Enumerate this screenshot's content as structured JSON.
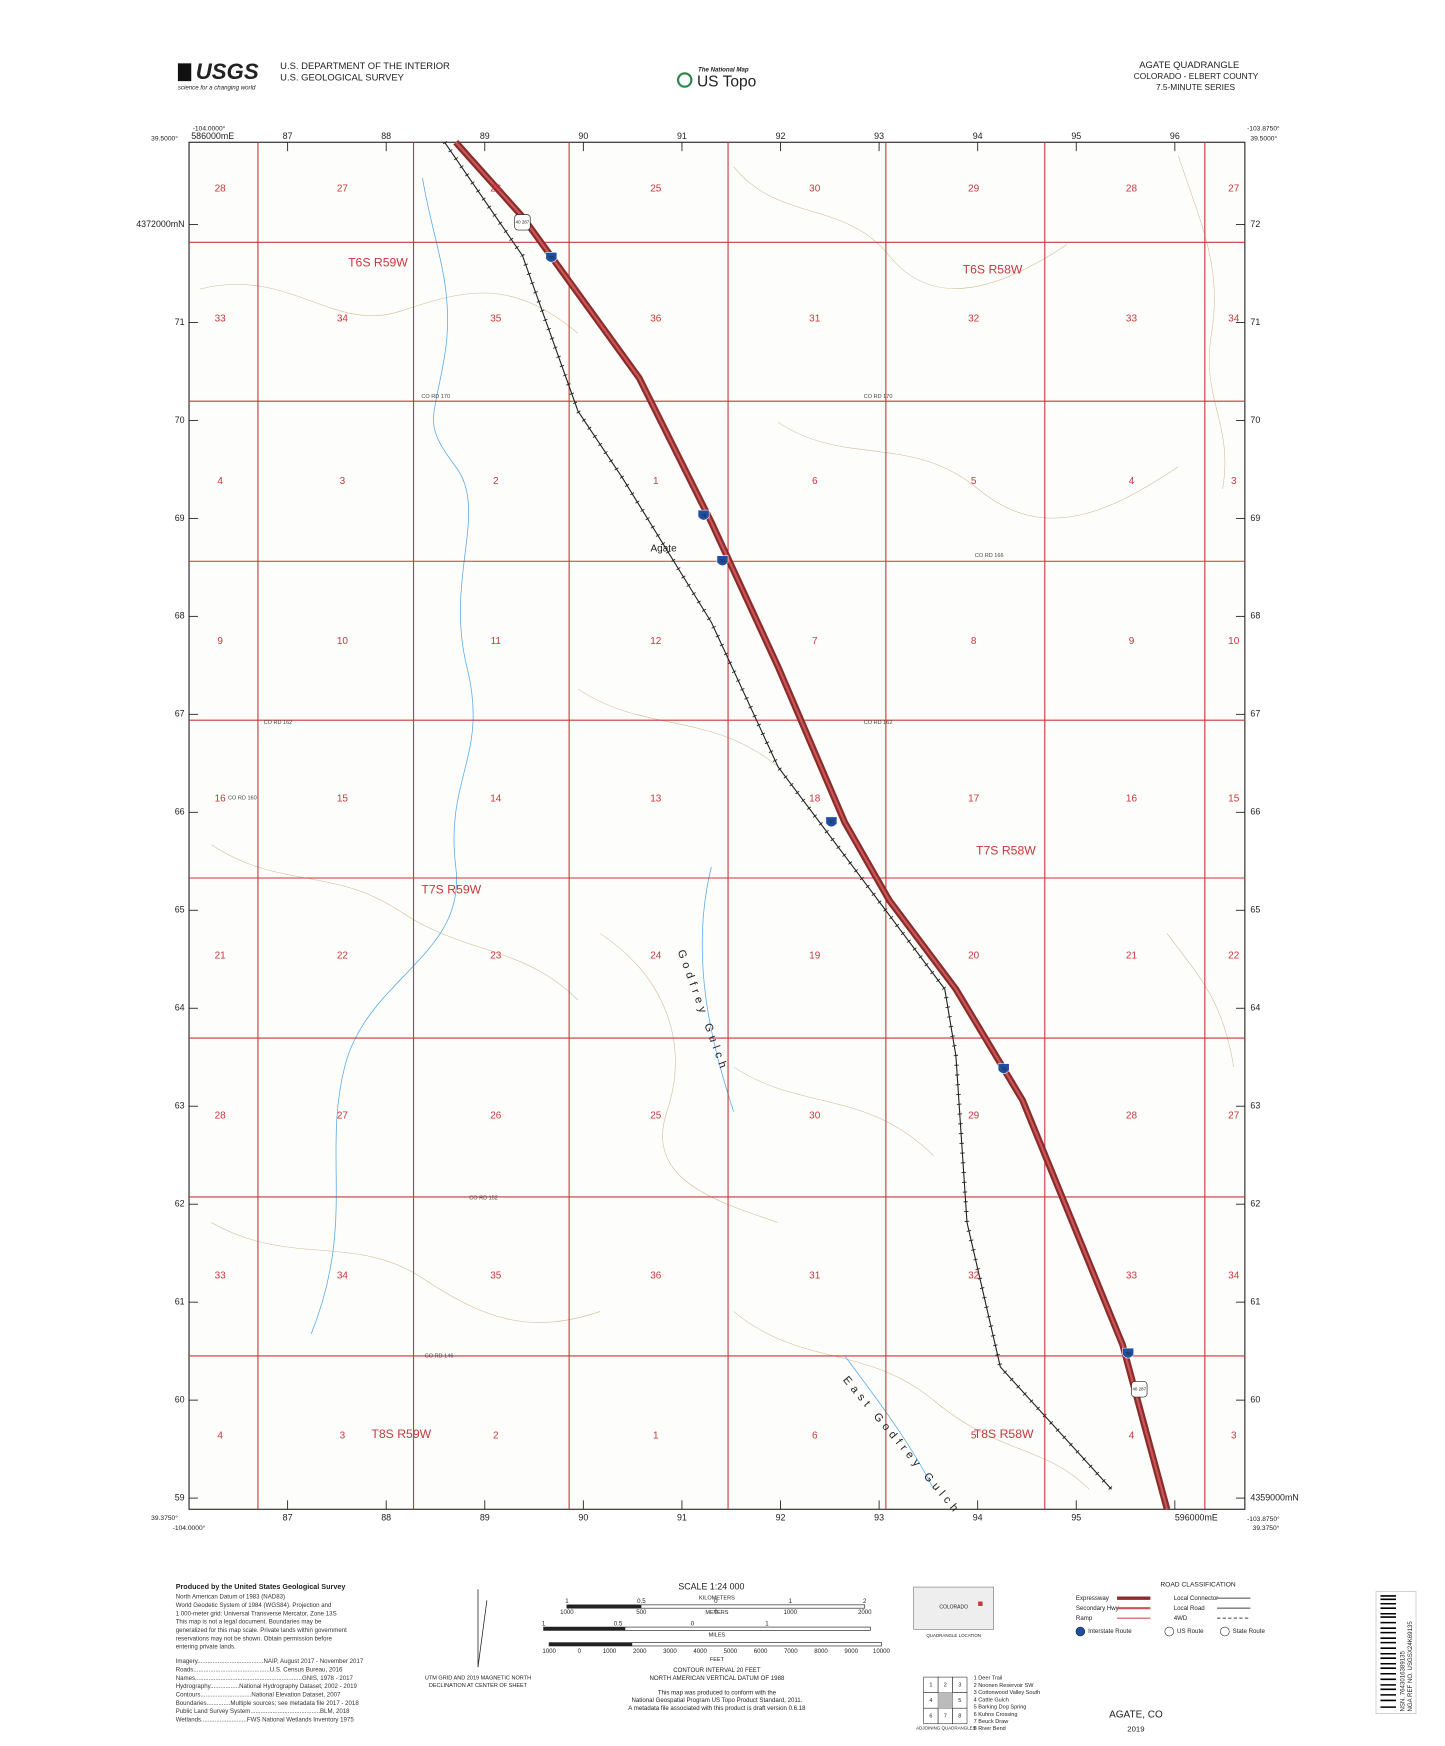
{
  "header": {
    "logo": "USGS",
    "tagline": "science for a changing world",
    "agency_line1": "U.S. DEPARTMENT OF THE INTERIOR",
    "agency_line2": "U.S. GEOLOGICAL SURVEY",
    "national_map": "The National Map",
    "us_topo": "US Topo",
    "quad_title": "AGATE QUADRANGLE",
    "state_county": "COLORADO - ELBERT COUNTY",
    "series": "7.5-MINUTE SERIES"
  },
  "map": {
    "corners": {
      "nw_lon": "-104.0000°",
      "nw_lat": "39.5000°",
      "ne_lon": "-103.8750°",
      "ne_lat": "39.5000°",
      "sw_lat": "39.3750°",
      "sw_lon": "-104.0000°",
      "se_lat": "39.3750°",
      "se_lon": "-103.8750°"
    },
    "eastings_top": [
      "586000mE",
      "87",
      "88",
      "89",
      "90",
      "91",
      "92",
      "93",
      "94",
      "95",
      "96"
    ],
    "eastings_bottom": [
      "87",
      "88",
      "89",
      "90",
      "91",
      "92",
      "93",
      "94",
      "95",
      "596000mE"
    ],
    "northings_left": [
      "4372000mN",
      "71",
      "70",
      "69",
      "68",
      "67",
      "66",
      "65",
      "64",
      "63",
      "62",
      "61",
      "60",
      "59"
    ],
    "northings_right": [
      "72",
      "71",
      "70",
      "69",
      "68",
      "67",
      "66",
      "65",
      "64",
      "63",
      "62",
      "61",
      "60",
      "4359000mN"
    ],
    "sections": [
      [
        "28",
        "27",
        "26",
        "25",
        "30",
        "29",
        "28",
        "27"
      ],
      [
        "33",
        "34",
        "35",
        "36",
        "31",
        "32",
        "33",
        "34"
      ],
      [
        "4",
        "3",
        "2",
        "1",
        "6",
        "5",
        "4",
        "3"
      ],
      [
        "9",
        "10",
        "11",
        "12",
        "7",
        "8",
        "9",
        "10"
      ],
      [
        "16",
        "15",
        "14",
        "13",
        "18",
        "17",
        "16",
        "15"
      ],
      [
        "21",
        "22",
        "23",
        "24",
        "19",
        "20",
        "21",
        "22"
      ],
      [
        "28",
        "27",
        "26",
        "25",
        "30",
        "29",
        "28",
        "27"
      ],
      [
        "33",
        "34",
        "35",
        "36",
        "31",
        "32",
        "33",
        "34"
      ],
      [
        "4",
        "3",
        "2",
        "1",
        "6",
        "5",
        "4",
        "3"
      ]
    ],
    "townships": [
      "T6S R59W",
      "T6S R58W",
      "T7S R58W",
      "T7S R59W",
      "T8S R59W",
      "T8S R58W"
    ],
    "places": [
      "Agate",
      "Godfrey Gulch",
      "East Godfrey Gulch"
    ],
    "roads": [
      "CO RD 170",
      "CO RD 170",
      "CO RD 166",
      "CO RD 162",
      "CO RD 162",
      "CO RD 160",
      "CO RD 152",
      "CO RD 146"
    ],
    "shields": [
      "70",
      "70",
      "70",
      "70",
      "70",
      "70"
    ],
    "us_shields": [
      "40 287",
      "40 287"
    ]
  },
  "footer": {
    "produced_by": "Produced by the United States Geological Survey",
    "notes": [
      "North American Datum of 1983 (NAD83)",
      "World Geodetic System of 1984 (WGS84). Projection and",
      "1 000-meter grid: Universal Transverse Mercator, Zone 13S",
      "This map is not a legal document. Boundaries may be",
      "generalized for this map scale. Private lands within government",
      "reservations may not be shown. Obtain permission before",
      "entering private lands."
    ],
    "sources": [
      "Imagery.......................................NAIP, August 2017 - November 2017",
      "Roads.............................................U.S. Census Bureau, 2016",
      "Names...............................................................GNIS, 1978 - 2017",
      "Hydrography.................National Hydrography Dataset, 2002 - 2019",
      "Contours..............................National Elevation Dataset, 2007",
      "Boundaries..............Multiple sources; see metadata file 2017 - 2018",
      "Public Land Survey System.........................................BLM, 2018",
      "Wetlands...........................FWS National Wetlands Inventory 1975"
    ],
    "declination": [
      "UTM GRID AND 2019 MAGNETIC NORTH",
      "DECLINATION AT CENTER OF SHEET"
    ],
    "scale_title": "SCALE 1:24 000",
    "units": [
      "KILOMETERS",
      "METERS",
      "MILES",
      "FEET"
    ],
    "km_labels": [
      "1",
      "0.5",
      "0",
      "1",
      "2"
    ],
    "m_labels": [
      "1000",
      "500",
      "0",
      "1000",
      "2000"
    ],
    "mi_labels": [
      "1",
      "0.5",
      "0",
      "1"
    ],
    "ft_labels": [
      "1000",
      "0",
      "1000",
      "2000",
      "3000",
      "4000",
      "5000",
      "6000",
      "7000",
      "8000",
      "9000",
      "10000"
    ],
    "contour": [
      "CONTOUR INTERVAL 20 FEET",
      "NORTH AMERICAN VERTICAL DATUM OF 1988"
    ],
    "standard": [
      "This map was produced to conform with the",
      "National Geospatial Program US Topo Product Standard, 2011.",
      "A metadata file associated with this product is draft version 0.6.18"
    ],
    "location_state": "COLORADO",
    "location_caption": "QUADRANGLE LOCATION",
    "adjoining": [
      "1 Deer Trail",
      "2 Noonen Reservoir SW",
      "3 Cottonwood Valley South",
      "4 Cattle Gulch",
      "5 Barking Dog Spring",
      "6 Kuhns Crossing",
      "7 Beuck Draw",
      "8 River Bend"
    ],
    "adjoining_digits": [
      "1",
      "2",
      "3",
      "4",
      "5",
      "6",
      "7",
      "8"
    ],
    "adjoining_caption": "ADJOINING QUADRANGLES",
    "legend_title": "ROAD CLASSIFICATION",
    "legend_left": [
      "Expressway",
      "Secondary Hwy",
      "Ramp"
    ],
    "legend_right": [
      "Local Connector",
      "Local Road",
      "4WD"
    ],
    "route_types": [
      "Interstate Route",
      "US Route",
      "State Route"
    ],
    "title": "AGATE, CO",
    "year": "2019",
    "barcode": [
      "NSN. 7643016389135",
      "NGA REF NO. USGSX24K69135"
    ]
  }
}
